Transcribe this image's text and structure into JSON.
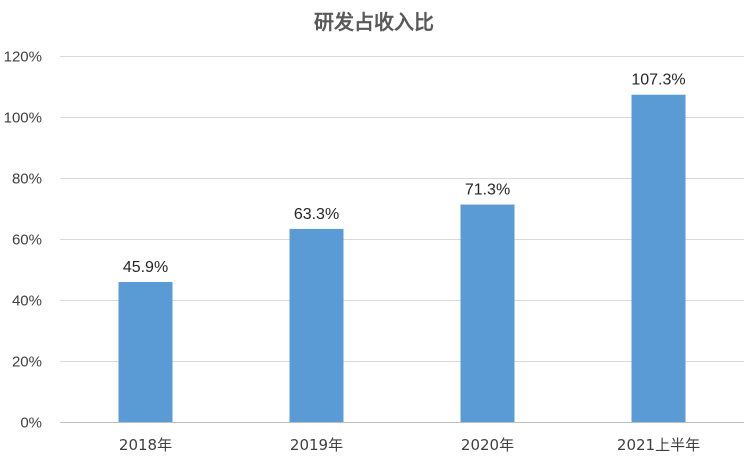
{
  "chart_data": {
    "type": "bar",
    "title": "研发占收入比",
    "categories": [
      "2018年",
      "2019年",
      "2020年",
      "2021上半年"
    ],
    "values": [
      45.9,
      63.3,
      71.3,
      107.3
    ],
    "data_labels": [
      "45.9%",
      "63.3%",
      "71.3%",
      "107.3%"
    ],
    "y_ticks": [
      0,
      20,
      40,
      60,
      80,
      100,
      120
    ],
    "y_tick_labels": [
      "0%",
      "20%",
      "40%",
      "60%",
      "80%",
      "100%",
      "120%"
    ],
    "ylim": [
      0,
      120
    ],
    "grid": true,
    "legend": "none",
    "bar_color": "#5b9bd5"
  }
}
